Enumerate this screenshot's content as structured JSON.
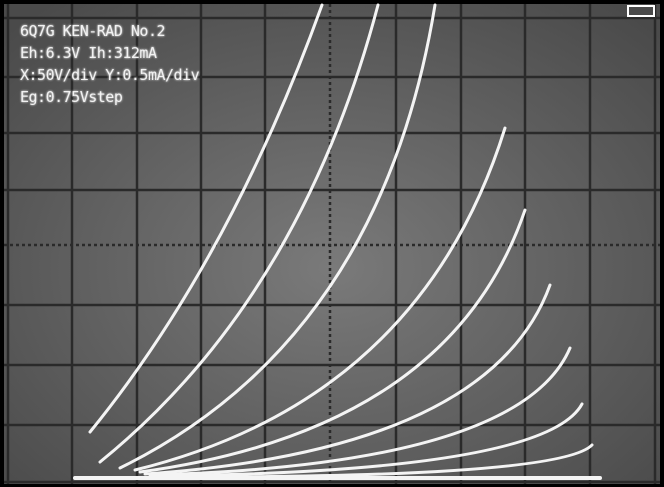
{
  "overlay": {
    "lines": [
      "6Q7G KEN-RAD No.2",
      "Eh:6.3V Ih:312mA",
      "X:50V/div Y:0.5mA/div",
      "Eg:0.75Vstep"
    ]
  }
}
